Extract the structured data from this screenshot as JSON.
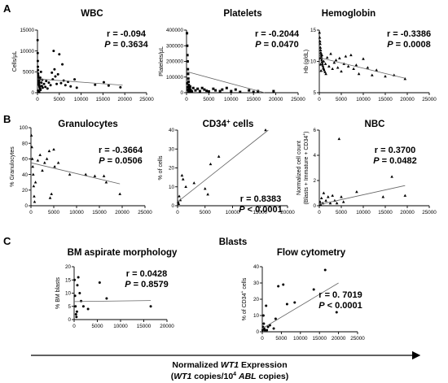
{
  "panel_labels": [
    "A",
    "B",
    "C"
  ],
  "section_title_c": "Blasts",
  "xaxis_title": {
    "line1": [
      "Normalized ",
      "WT1",
      " Expression"
    ],
    "line2": [
      "(",
      "WT1",
      " copies/10",
      "4",
      " ",
      "ABL",
      " copies)"
    ]
  },
  "chart_data": [
    {
      "id": "wbc",
      "type": "scatter",
      "title": "WBC",
      "ylabel": "Cells/µL",
      "xlim": [
        0,
        25000
      ],
      "ylim": [
        0,
        15000
      ],
      "xticks": [
        0,
        5000,
        10000,
        15000,
        20000,
        25000
      ],
      "yticks": [
        0,
        5000,
        10000,
        15000
      ],
      "marker": "circle",
      "stats": {
        "r": "r = -0.094",
        "p": "= 0.3634"
      },
      "fit": {
        "x": [
          0,
          19500
        ],
        "y": [
          3300,
          1800
        ]
      },
      "points": [
        [
          30,
          12600
        ],
        [
          50,
          9500
        ],
        [
          80,
          7600
        ],
        [
          100,
          6200
        ],
        [
          120,
          5400
        ],
        [
          150,
          4600
        ],
        [
          180,
          4100
        ],
        [
          200,
          3700
        ],
        [
          230,
          3300
        ],
        [
          260,
          3000
        ],
        [
          300,
          2700
        ],
        [
          330,
          2400
        ],
        [
          350,
          2100
        ],
        [
          380,
          1900
        ],
        [
          420,
          1700
        ],
        [
          460,
          1500
        ],
        [
          500,
          1300
        ],
        [
          550,
          1100
        ],
        [
          600,
          900
        ],
        [
          650,
          800
        ],
        [
          700,
          650
        ],
        [
          120,
          500
        ],
        [
          200,
          350
        ],
        [
          300,
          250
        ],
        [
          400,
          150
        ],
        [
          250,
          2000
        ],
        [
          380,
          2600
        ],
        [
          520,
          3200
        ],
        [
          640,
          3600
        ],
        [
          800,
          5000
        ],
        [
          900,
          2400
        ],
        [
          1000,
          1600
        ],
        [
          1100,
          3100
        ],
        [
          1200,
          1200
        ],
        [
          1500,
          2100
        ],
        [
          1800,
          1400
        ],
        [
          2000,
          2800
        ],
        [
          2300,
          1000
        ],
        [
          2600,
          2400
        ],
        [
          3000,
          1800
        ],
        [
          3300,
          4800
        ],
        [
          3500,
          3200
        ],
        [
          3700,
          10000
        ],
        [
          3900,
          5600
        ],
        [
          4100,
          3900
        ],
        [
          4400,
          2100
        ],
        [
          4700,
          4400
        ],
        [
          5000,
          9200
        ],
        [
          5400,
          2300
        ],
        [
          5700,
          6800
        ],
        [
          6000,
          2900
        ],
        [
          6400,
          1800
        ],
        [
          7000,
          2600
        ],
        [
          7600,
          1500
        ],
        [
          8500,
          3200
        ],
        [
          9000,
          1200
        ],
        [
          13200,
          1900
        ],
        [
          15200,
          2500
        ],
        [
          16300,
          1700
        ],
        [
          19000,
          1300
        ]
      ]
    },
    {
      "id": "platelets",
      "type": "scatter",
      "title": "Platelets",
      "ylabel": "Platelets/µL",
      "xlim": [
        0,
        25000
      ],
      "ylim": [
        0,
        400000
      ],
      "xticks": [
        0,
        5000,
        10000,
        15000,
        20000,
        25000
      ],
      "yticks": [
        0,
        100000,
        200000,
        300000,
        400000
      ],
      "marker": "square",
      "stats": {
        "r": "r = -0.2044",
        "p": "= 0.0470"
      },
      "fit": {
        "x": [
          0,
          17500
        ],
        "y": [
          135000,
          0
        ]
      },
      "points": [
        [
          100,
          380000
        ],
        [
          150,
          300000
        ],
        [
          200,
          240000
        ],
        [
          250,
          200000
        ],
        [
          300,
          150000
        ],
        [
          350,
          120000
        ],
        [
          400,
          90000
        ],
        [
          450,
          70000
        ],
        [
          500,
          50000
        ],
        [
          550,
          40000
        ],
        [
          600,
          30000
        ],
        [
          700,
          25000
        ],
        [
          800,
          20000
        ],
        [
          900,
          15000
        ],
        [
          1000,
          10000
        ],
        [
          1200,
          8000
        ],
        [
          150,
          60000
        ],
        [
          250,
          35000
        ],
        [
          350,
          18000
        ],
        [
          450,
          9000
        ],
        [
          600,
          5000
        ],
        [
          800,
          40000
        ],
        [
          1500,
          30000
        ],
        [
          2000,
          15000
        ],
        [
          2500,
          25000
        ],
        [
          3000,
          10000
        ],
        [
          3500,
          30000
        ],
        [
          4000,
          20000
        ],
        [
          4500,
          12000
        ],
        [
          5000,
          8000
        ],
        [
          6000,
          25000
        ],
        [
          6500,
          15000
        ],
        [
          7500,
          10000
        ],
        [
          8000,
          20000
        ],
        [
          9000,
          30000
        ],
        [
          10000,
          10000
        ],
        [
          11000,
          20000
        ],
        [
          12000,
          5000
        ],
        [
          14000,
          15000
        ],
        [
          15000,
          5000
        ],
        [
          16000,
          10000
        ],
        [
          19500,
          10000
        ]
      ]
    },
    {
      "id": "hemoglobin",
      "type": "scatter",
      "title": "Hemoglobin",
      "ylabel": "Hb (g/dL)",
      "xlim": [
        0,
        25000
      ],
      "ylim": [
        5,
        15
      ],
      "xticks": [
        0,
        5000,
        10000,
        15000,
        20000,
        25000
      ],
      "yticks": [
        5,
        10,
        15
      ],
      "marker": "triangle",
      "stats": {
        "r": "r = -0.3386",
        "p": "= 0.0008"
      },
      "fit": {
        "x": [
          0,
          19500
        ],
        "y": [
          10.6,
          7.3
        ]
      },
      "points": [
        [
          50,
          14.6
        ],
        [
          100,
          13.8
        ],
        [
          150,
          13.2
        ],
        [
          200,
          12.8
        ],
        [
          250,
          12.2
        ],
        [
          300,
          11.8
        ],
        [
          350,
          11.4
        ],
        [
          400,
          11.1
        ],
        [
          450,
          10.8
        ],
        [
          500,
          10.5
        ],
        [
          550,
          10.2
        ],
        [
          600,
          9.9
        ],
        [
          700,
          9.6
        ],
        [
          800,
          9.3
        ],
        [
          900,
          9.0
        ],
        [
          1000,
          8.8
        ],
        [
          1100,
          8.6
        ],
        [
          1300,
          8.3
        ],
        [
          1500,
          8.0
        ],
        [
          200,
          10.5
        ],
        [
          300,
          9.5
        ],
        [
          400,
          8.5
        ],
        [
          600,
          11.0
        ],
        [
          1000,
          10.0
        ],
        [
          1400,
          9.6
        ],
        [
          1800,
          10.6
        ],
        [
          2200,
          9.2
        ],
        [
          2600,
          11.2
        ],
        [
          3000,
          8.8
        ],
        [
          3400,
          9.8
        ],
        [
          3800,
          10.2
        ],
        [
          4200,
          9.0
        ],
        [
          4600,
          10.5
        ],
        [
          5000,
          8.4
        ],
        [
          5600,
          9.6
        ],
        [
          6000,
          10.8
        ],
        [
          6600,
          9.2
        ],
        [
          7200,
          11.0
        ],
        [
          7800,
          8.8
        ],
        [
          8400,
          9.4
        ],
        [
          9000,
          8.0
        ],
        [
          10000,
          10.4
        ],
        [
          11000,
          9.0
        ],
        [
          12000,
          7.8
        ],
        [
          13000,
          8.6
        ],
        [
          15000,
          7.6
        ],
        [
          17000,
          7.8
        ],
        [
          19500,
          7.2
        ]
      ]
    },
    {
      "id": "granulocytes",
      "type": "scatter",
      "title": "Granulocytes",
      "ylabel": "% Granulocytes",
      "xlim": [
        0,
        25000
      ],
      "ylim": [
        0,
        100
      ],
      "xticks": [
        0,
        5000,
        10000,
        15000,
        20000,
        25000
      ],
      "yticks": [
        0,
        20,
        40,
        60,
        80,
        100
      ],
      "marker": "triangle",
      "stats": {
        "r": "r = -0.3664",
        "p": "= 0.0506"
      },
      "fit": {
        "x": [
          0,
          19500
        ],
        "y": [
          55,
          28
        ]
      },
      "points": [
        [
          100,
          90
        ],
        [
          200,
          75
        ],
        [
          300,
          60
        ],
        [
          400,
          50
        ],
        [
          500,
          40
        ],
        [
          600,
          25
        ],
        [
          700,
          12
        ],
        [
          800,
          5
        ],
        [
          1000,
          30
        ],
        [
          1500,
          58
        ],
        [
          2000,
          65
        ],
        [
          2500,
          45
        ],
        [
          3000,
          55
        ],
        [
          3500,
          60
        ],
        [
          4000,
          70
        ],
        [
          4200,
          10
        ],
        [
          4500,
          15
        ],
        [
          5000,
          72
        ],
        [
          5200,
          50
        ],
        [
          6000,
          55
        ],
        [
          8500,
          40
        ],
        [
          12000,
          40
        ],
        [
          14000,
          38
        ],
        [
          16000,
          38
        ],
        [
          16500,
          30
        ],
        [
          19500,
          15
        ]
      ]
    },
    {
      "id": "cd34",
      "type": "scatter",
      "title": "CD34",
      "title_sup": "+",
      "title_suffix": " cells",
      "ylabel": "% of cells",
      "xlim": [
        0,
        20000
      ],
      "ylim": [
        0,
        40
      ],
      "xticks": [
        0,
        5000,
        10000,
        15000,
        20000
      ],
      "yticks": [
        0,
        10,
        20,
        30,
        40
      ],
      "marker": "triangle",
      "stats": {
        "r": "r = 0.8383",
        "p": "< 0.0001"
      },
      "fit": {
        "x": [
          0,
          16500
        ],
        "y": [
          2,
          40
        ]
      },
      "points": [
        [
          100,
          2
        ],
        [
          200,
          1
        ],
        [
          300,
          5
        ],
        [
          500,
          3
        ],
        [
          800,
          16
        ],
        [
          1000,
          14
        ],
        [
          1500,
          10
        ],
        [
          3000,
          12
        ],
        [
          5000,
          9
        ],
        [
          5500,
          6
        ],
        [
          6000,
          22
        ],
        [
          7500,
          26
        ],
        [
          16000,
          40
        ]
      ]
    },
    {
      "id": "nbc",
      "type": "scatter",
      "title": "NBC",
      "ylabel": "Normalized cell count",
      "ylabel2": [
        "(Blasts + Immature + CD34",
        "+",
        ")"
      ],
      "xlim": [
        0,
        25000
      ],
      "ylim": [
        0,
        6
      ],
      "xticks": [
        0,
        5000,
        10000,
        15000,
        20000,
        25000
      ],
      "yticks": [
        0,
        2,
        4,
        6
      ],
      "marker": "triangle",
      "stats": {
        "r": "r = 0.3700",
        "p": "= 0.0482"
      },
      "fit": {
        "x": [
          0,
          19500
        ],
        "y": [
          0.1,
          1.6
        ]
      },
      "points": [
        [
          100,
          0.05
        ],
        [
          200,
          0.3
        ],
        [
          300,
          0.1
        ],
        [
          500,
          0.6
        ],
        [
          800,
          0.2
        ],
        [
          1000,
          1.0
        ],
        [
          1500,
          0.4
        ],
        [
          2000,
          0.7
        ],
        [
          2500,
          0.2
        ],
        [
          3000,
          0.8
        ],
        [
          3500,
          0.4
        ],
        [
          4000,
          0.2
        ],
        [
          4500,
          5.3
        ],
        [
          5000,
          0.7
        ],
        [
          5500,
          0.3
        ],
        [
          8500,
          1.1
        ],
        [
          14500,
          0.7
        ],
        [
          16500,
          2.3
        ],
        [
          19500,
          0.8
        ]
      ]
    },
    {
      "id": "bm",
      "type": "scatter",
      "title": "BM aspirate morphology",
      "ylabel": "% BM blasts",
      "xlim": [
        0,
        20000
      ],
      "ylim": [
        0,
        20
      ],
      "xticks": [
        0,
        5000,
        10000,
        15000,
        20000
      ],
      "yticks": [
        0,
        5,
        10,
        15,
        20
      ],
      "marker": "circle",
      "stats": {
        "r": "r = 0.0428",
        "p": "= 0.8579"
      },
      "fit": {
        "x": [
          0,
          16500
        ],
        "y": [
          6.8,
          7.2
        ]
      },
      "points": [
        [
          100,
          15
        ],
        [
          200,
          9
        ],
        [
          300,
          5
        ],
        [
          400,
          2
        ],
        [
          500,
          1
        ],
        [
          600,
          3
        ],
        [
          700,
          13
        ],
        [
          900,
          16
        ],
        [
          1200,
          10
        ],
        [
          1500,
          7
        ],
        [
          2000,
          5
        ],
        [
          3000,
          4
        ],
        [
          5500,
          14
        ],
        [
          7000,
          8
        ],
        [
          16500,
          5
        ]
      ]
    },
    {
      "id": "flow",
      "type": "scatter",
      "title": "Flow cytometry",
      "ylabel": "% of CD34",
      "ylabel_sup": "+",
      "ylabel_suffix": " cells",
      "xlim": [
        0,
        25000
      ],
      "ylim": [
        0,
        40
      ],
      "xticks": [
        0,
        5000,
        10000,
        15000,
        20000,
        25000
      ],
      "yticks": [
        0,
        10,
        20,
        30,
        40
      ],
      "marker": "circle",
      "stats": {
        "r": "r = 0. 7019",
        "p": "< 0.0001"
      },
      "fit": {
        "x": [
          0,
          20000
        ],
        "y": [
          2,
          30
        ]
      },
      "points": [
        [
          100,
          1
        ],
        [
          200,
          3
        ],
        [
          300,
          10
        ],
        [
          400,
          5
        ],
        [
          500,
          2
        ],
        [
          700,
          1
        ],
        [
          1000,
          16
        ],
        [
          1200,
          1
        ],
        [
          1500,
          3
        ],
        [
          2000,
          4
        ],
        [
          3000,
          2
        ],
        [
          3500,
          8
        ],
        [
          4200,
          28
        ],
        [
          5500,
          29
        ],
        [
          6500,
          17
        ],
        [
          8500,
          18
        ],
        [
          13500,
          26
        ],
        [
          16500,
          38
        ],
        [
          19500,
          12
        ]
      ]
    }
  ]
}
